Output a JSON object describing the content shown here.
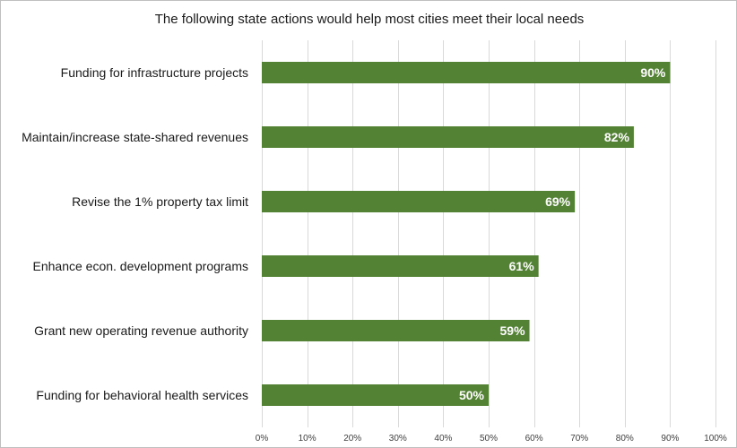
{
  "chart_data": {
    "type": "bar",
    "orientation": "horizontal",
    "title": "The following state actions would help most cities meet their local needs",
    "xlabel": "",
    "ylabel": "",
    "categories": [
      "Funding for infrastructure projects",
      "Maintain/increase state-shared revenues",
      "Revise the 1% property tax limit",
      "Enhance econ. development programs",
      "Grant new operating revenue authority",
      "Funding for behavioral health services"
    ],
    "values": [
      90,
      82,
      69,
      61,
      59,
      50
    ],
    "data_labels": [
      "90%",
      "82%",
      "69%",
      "61%",
      "59%",
      "50%"
    ],
    "xlim": [
      0,
      100
    ],
    "x_ticks": [
      0,
      10,
      20,
      30,
      40,
      50,
      60,
      70,
      80,
      90,
      100
    ],
    "x_tick_labels": [
      "0%",
      "10%",
      "20%",
      "30%",
      "40%",
      "50%",
      "60%",
      "70%",
      "80%",
      "90%",
      "100%"
    ],
    "grid": true,
    "legend": "none",
    "bar_color": "#548235"
  }
}
